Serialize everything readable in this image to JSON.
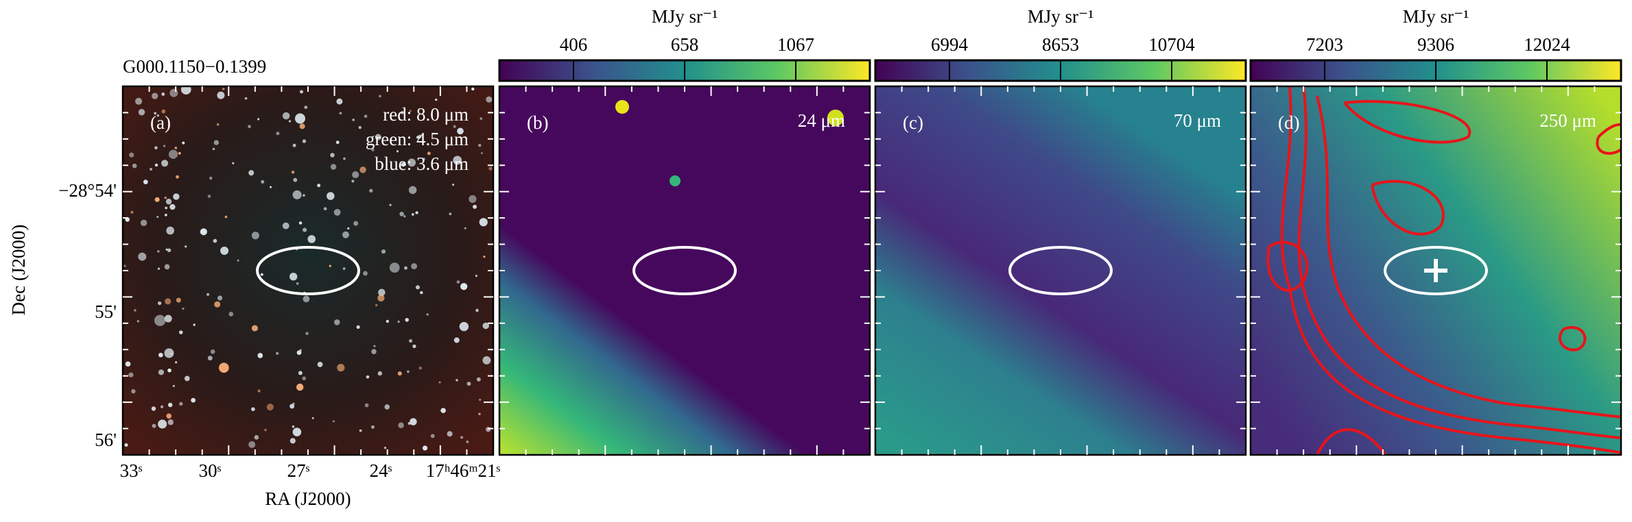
{
  "source": "G000.1150−0.1399",
  "axes": {
    "x_label": "RA (J2000)",
    "y_label": "Dec (J2000)",
    "x_ticks": [
      "33ˢ",
      "30ˢ",
      "27ˢ",
      "24ˢ",
      "17ʰ46ᵐ21ˢ"
    ],
    "y_ticks": [
      "−28°54'",
      "55'",
      "56'"
    ]
  },
  "panels": [
    {
      "label": "(a)",
      "bands": [
        "red: 8.0 μm",
        "green: 4.5 μm",
        "blue: 3.6 μm"
      ]
    },
    {
      "label": "(b)",
      "band": "24 μm",
      "colorbar": {
        "unit": "MJy sr⁻¹",
        "ticks": [
          "406",
          "658",
          "1067"
        ]
      }
    },
    {
      "label": "(c)",
      "band": "70 μm",
      "colorbar": {
        "unit": "MJy sr⁻¹",
        "ticks": [
          "6994",
          "8653",
          "10704"
        ]
      }
    },
    {
      "label": "(d)",
      "band": "250 μm",
      "colorbar": {
        "unit": "MJy sr⁻¹",
        "ticks": [
          "7203",
          "9306",
          "12024"
        ]
      }
    }
  ]
}
